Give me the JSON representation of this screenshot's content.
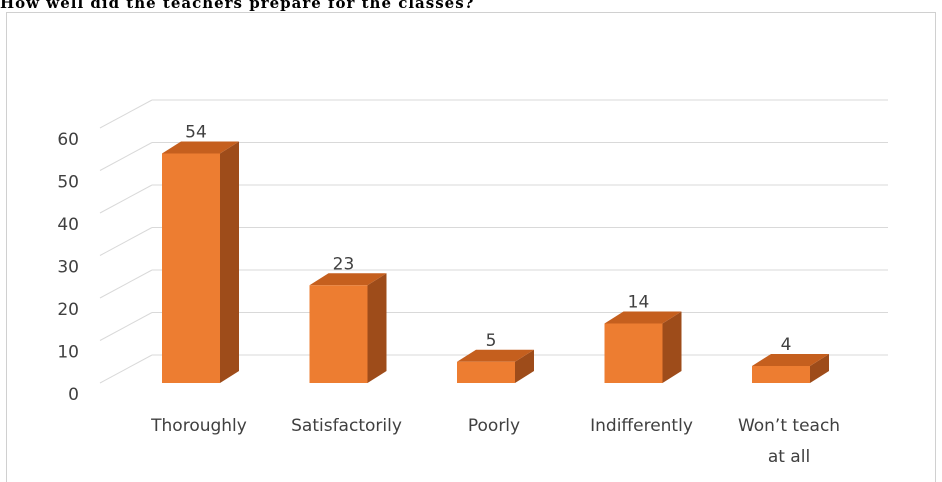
{
  "page": {
    "title": "How well did the teachers prepare for the classes?"
  },
  "chart_data": {
    "type": "bar",
    "style": "3d-column",
    "title": "",
    "xlabel": "",
    "ylabel": "",
    "categories": [
      "Thoroughly",
      "Satisfactorily",
      "Poorly",
      "Indifferently",
      "Won’t teach at all"
    ],
    "category_lines": [
      [
        "Thoroughly"
      ],
      [
        "Satisfactorily"
      ],
      [
        "Poorly"
      ],
      [
        "Indifferently"
      ],
      [
        "Won’t teach",
        "at all"
      ]
    ],
    "values": [
      54,
      23,
      5,
      14,
      4
    ],
    "data_labels": [
      "54",
      "23",
      "5",
      "14",
      "4"
    ],
    "ylim": [
      0,
      60
    ],
    "yticks": [
      0,
      10,
      20,
      30,
      40,
      50,
      60
    ],
    "grid": true,
    "legend": "none",
    "colors": {
      "bar_front": "#ED7D31",
      "bar_top": "#C55F1E",
      "bar_side": "#9E4C1A",
      "grid": "#D9D9D9",
      "text": "#404040"
    }
  }
}
